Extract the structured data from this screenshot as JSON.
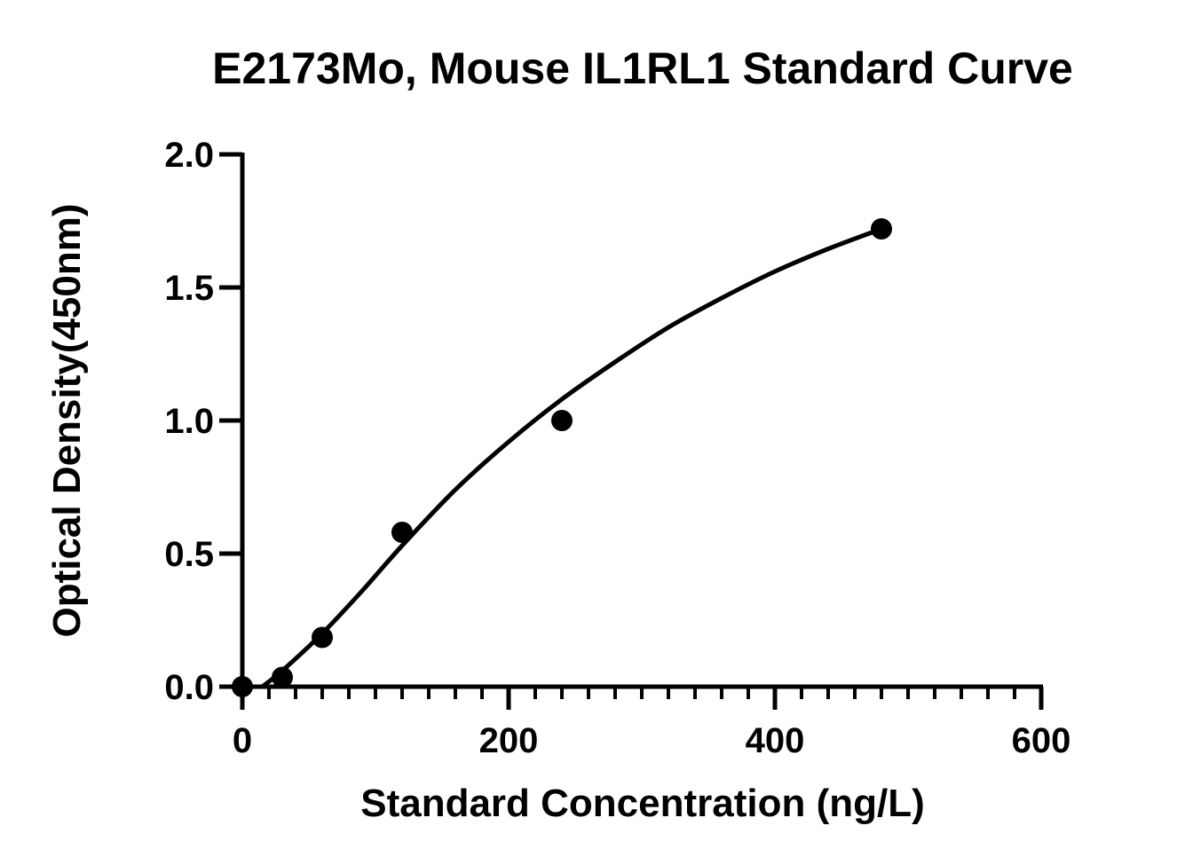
{
  "chart_data": {
    "type": "scatter",
    "title": "E2173Mo, Mouse IL1RL1 Standard Curve",
    "xlabel": "Standard Concentration (ng/L)",
    "ylabel": "Optical Density(450nm)",
    "xlim": [
      0,
      600
    ],
    "ylim": [
      0,
      2.0
    ],
    "x_ticks": [
      "0",
      "200",
      "400",
      "600"
    ],
    "y_ticks": [
      "0.0",
      "0.5",
      "1.0",
      "1.5",
      "2.0"
    ],
    "grid": false,
    "series": [
      {
        "points": [
          {
            "x": 0,
            "y": 0.0
          },
          {
            "x": 30,
            "y": 0.035
          },
          {
            "x": 60,
            "y": 0.185
          },
          {
            "x": 120,
            "y": 0.58
          },
          {
            "x": 240,
            "y": 1.0
          },
          {
            "x": 480,
            "y": 1.72
          }
        ],
        "fit_curve": [
          {
            "x": 15,
            "y": 0.0
          },
          {
            "x": 30,
            "y": 0.06
          },
          {
            "x": 60,
            "y": 0.2
          },
          {
            "x": 90,
            "y": 0.36
          },
          {
            "x": 120,
            "y": 0.53
          },
          {
            "x": 160,
            "y": 0.74
          },
          {
            "x": 200,
            "y": 0.92
          },
          {
            "x": 240,
            "y": 1.08
          },
          {
            "x": 280,
            "y": 1.22
          },
          {
            "x": 320,
            "y": 1.35
          },
          {
            "x": 360,
            "y": 1.46
          },
          {
            "x": 400,
            "y": 1.56
          },
          {
            "x": 440,
            "y": 1.645
          },
          {
            "x": 480,
            "y": 1.72
          }
        ],
        "color": "#000000"
      }
    ]
  }
}
